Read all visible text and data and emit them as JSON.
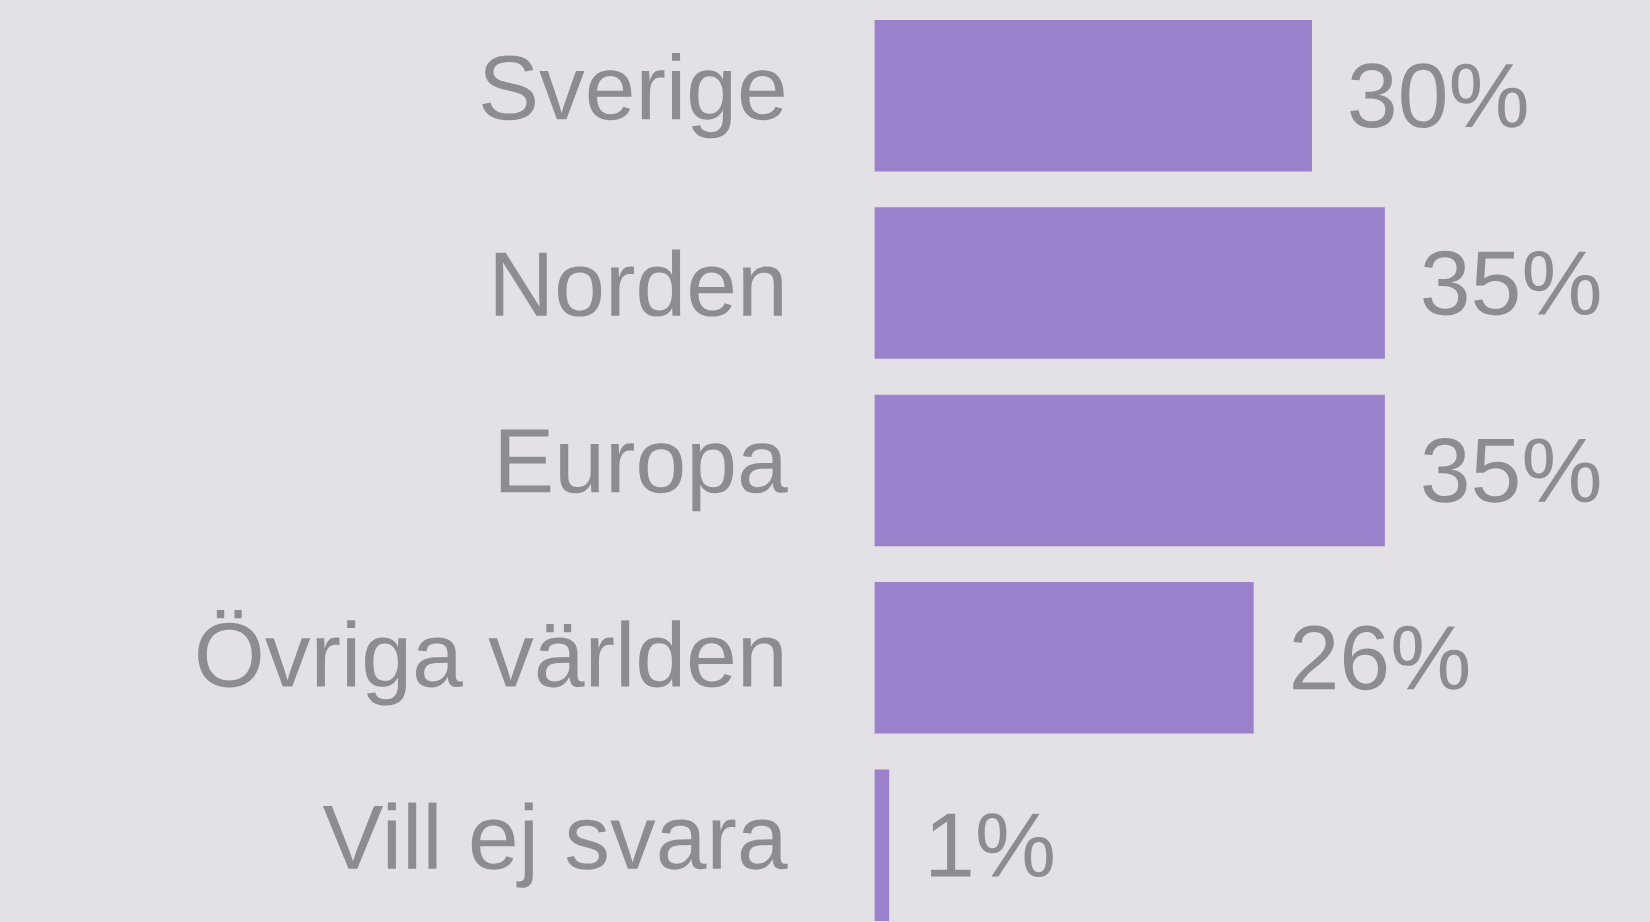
{
  "chart_data": {
    "type": "bar",
    "orientation": "horizontal",
    "categories": [
      "Sverige",
      "Norden",
      "Europa",
      "Övriga världen",
      "Vill ej svara"
    ],
    "values": [
      30,
      35,
      35,
      26,
      1
    ],
    "value_labels": [
      "30%",
      "35%",
      "35%",
      "26%",
      "1%"
    ],
    "color": "#9b80cc"
  }
}
